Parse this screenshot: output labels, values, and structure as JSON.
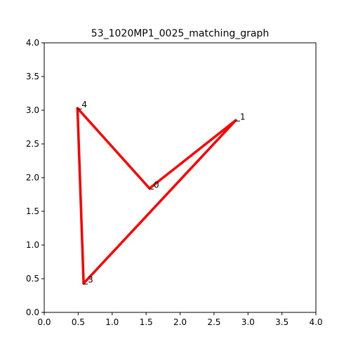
{
  "chart_data": {
    "type": "line",
    "title": "53_1020MP1_0025_matching_graph",
    "xlabel": "",
    "ylabel": "",
    "xlim": [
      0.0,
      4.0
    ],
    "ylim": [
      0.0,
      4.0
    ],
    "grid": false,
    "x_ticks": [
      "0.0",
      "0.5",
      "1.0",
      "1.5",
      "2.0",
      "2.5",
      "3.0",
      "3.5",
      "4.0"
    ],
    "y_ticks": [
      "0.0",
      "0.5",
      "1.0",
      "1.5",
      "2.0",
      "2.5",
      "3.0",
      "3.5",
      "4.0"
    ],
    "edge_color": "#ff0000",
    "nodes": [
      {
        "id": "0",
        "x": 1.55,
        "y": 1.84
      },
      {
        "id": "1",
        "x": 2.82,
        "y": 2.85
      },
      {
        "id": "3",
        "x": 0.58,
        "y": 0.43
      },
      {
        "id": "4",
        "x": 0.49,
        "y": 3.03
      }
    ],
    "edges": [
      [
        "4",
        "0"
      ],
      [
        "0",
        "1"
      ],
      [
        "1",
        "3"
      ],
      [
        "3",
        "4"
      ]
    ]
  }
}
